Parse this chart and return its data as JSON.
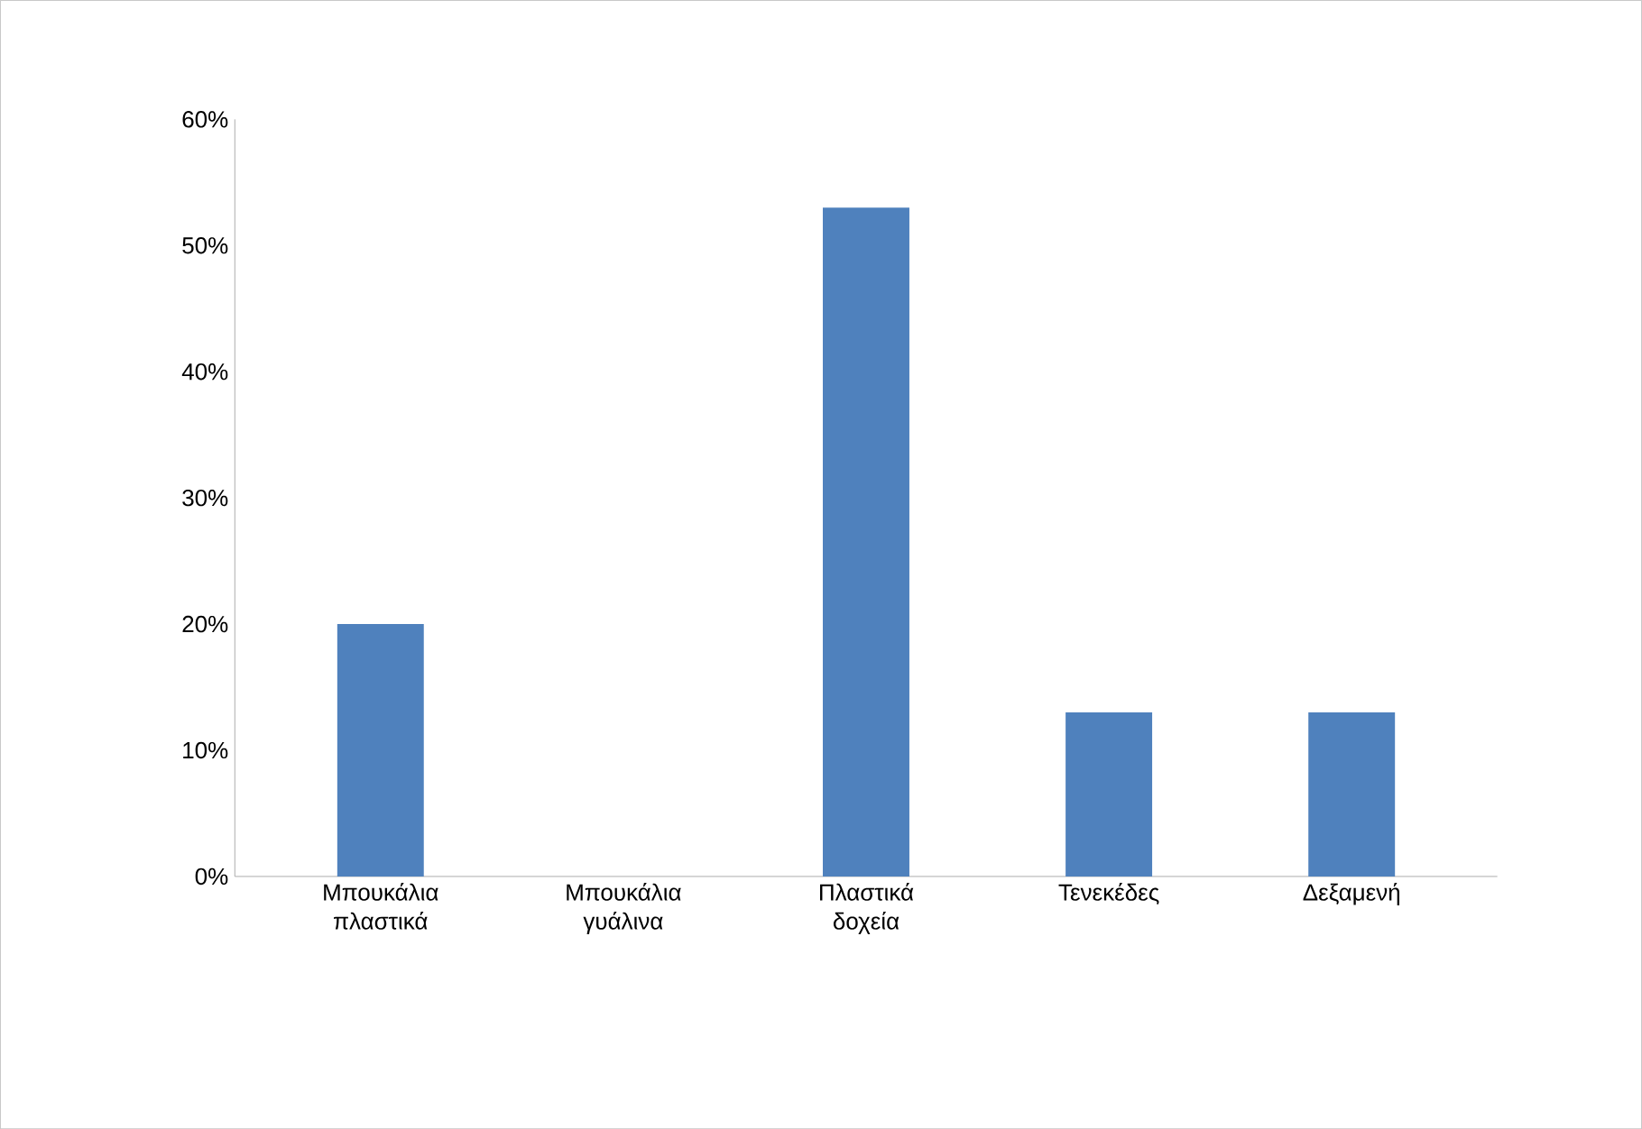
{
  "chart_data": {
    "type": "bar",
    "categories": [
      "Μπουκάλια πλαστικά",
      "Μπουκάλια γυάλινα",
      "Πλαστικά δοχεία",
      "Τενεκέδες",
      "Δεξαμενή"
    ],
    "values": [
      20,
      0,
      53,
      13,
      13
    ],
    "color": "#4f81bd",
    "ylim": [
      0,
      60
    ],
    "yticks": [
      {
        "value": 0,
        "label": "0%"
      },
      {
        "value": 10,
        "label": "10%"
      },
      {
        "value": 20,
        "label": "20%"
      },
      {
        "value": 30,
        "label": "30%"
      },
      {
        "value": 40,
        "label": "40%"
      },
      {
        "value": 50,
        "label": "50%"
      },
      {
        "value": 60,
        "label": "60%"
      }
    ],
    "grid": false
  }
}
